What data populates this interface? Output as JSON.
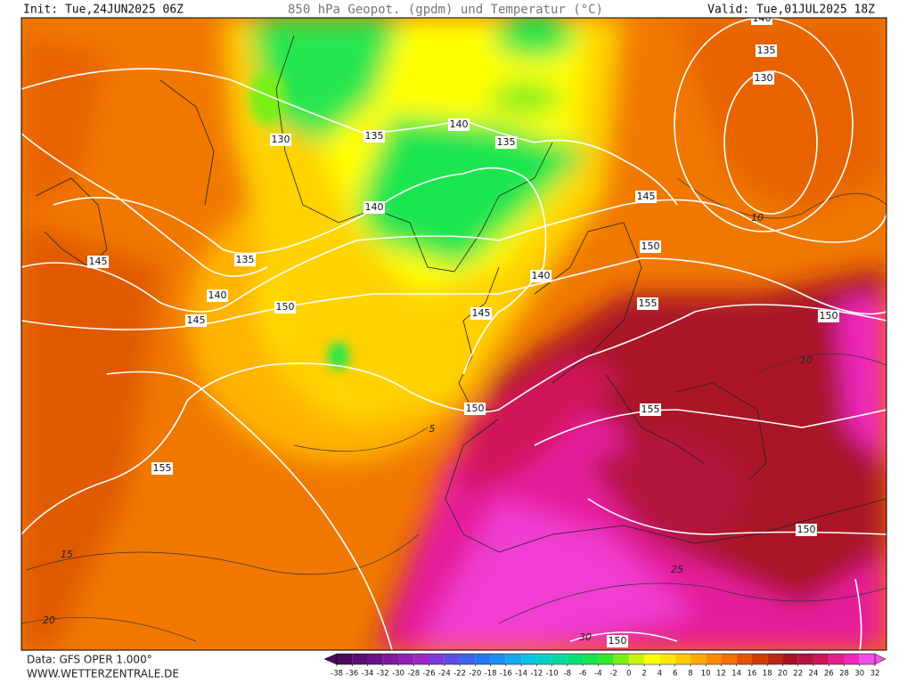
{
  "header": {
    "init": "Init: Tue,24JUN2025 06Z",
    "title": "850 hPa Geopot. (gpdm) und Temperatur (°C)",
    "valid": "Valid: Tue,01JUL2025 18Z"
  },
  "footer": {
    "source": "Data: GFS OPER 1.000°",
    "website": "WWW.WETTERZENTRALE.DE"
  },
  "colorbar": {
    "ticks": [
      -38,
      -36,
      -34,
      -32,
      -30,
      -28,
      -26,
      -24,
      -22,
      -20,
      -18,
      -16,
      -14,
      -12,
      -10,
      -8,
      -6,
      -4,
      -2,
      0,
      2,
      4,
      6,
      8,
      10,
      12,
      14,
      16,
      18,
      20,
      22,
      24,
      26,
      28,
      30,
      32
    ],
    "colors": [
      "#4b0a5a",
      "#5c0f72",
      "#6e1488",
      "#801aa0",
      "#921fb8",
      "#a024c8",
      "#7d3adc",
      "#5a50e6",
      "#3c64f0",
      "#2878f5",
      "#1e90f5",
      "#14aaf0",
      "#0ac3e6",
      "#00d2c8",
      "#00dca0",
      "#00e178",
      "#14e650",
      "#32eb28",
      "#78f014",
      "#c8f50a",
      "#ffff00",
      "#ffe600",
      "#ffc800",
      "#ffaa00",
      "#ff8c00",
      "#f57000",
      "#e65500",
      "#d23c00",
      "#be2814",
      "#aa1428",
      "#b4143c",
      "#d2145a",
      "#e61e8c",
      "#f028be",
      "#f050e6"
    ]
  },
  "geopotential_labels": [
    140,
    135,
    130,
    130,
    135,
    140,
    135,
    145,
    140,
    150,
    145,
    135,
    140,
    150,
    140,
    145,
    145,
    155,
    150,
    150,
    155,
    155,
    150,
    150
  ],
  "temperature_labels": [
    15,
    20,
    10,
    10,
    5,
    25,
    30
  ]
}
